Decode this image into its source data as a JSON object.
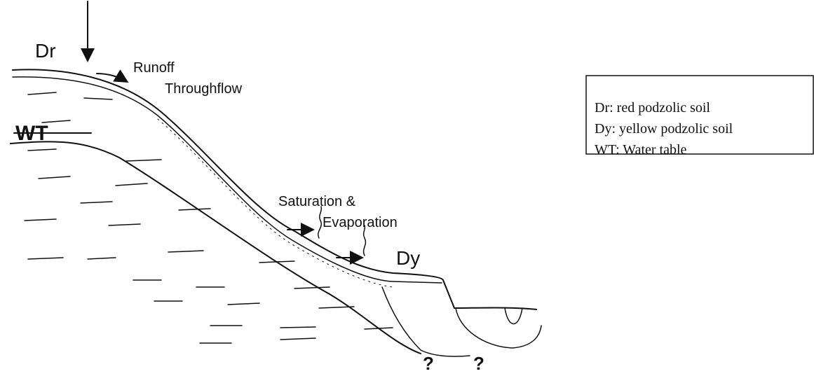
{
  "labels": [
    "Dr",
    "Runoff",
    "Throughflow",
    "WT",
    "Saturation &",
    "Evaporation",
    "Dy",
    "?",
    "?"
  ],
  "legend": [
    "Dr: red podzolic soil",
    "Dy: yellow podzolic soil",
    "WT: Water table"
  ]
}
